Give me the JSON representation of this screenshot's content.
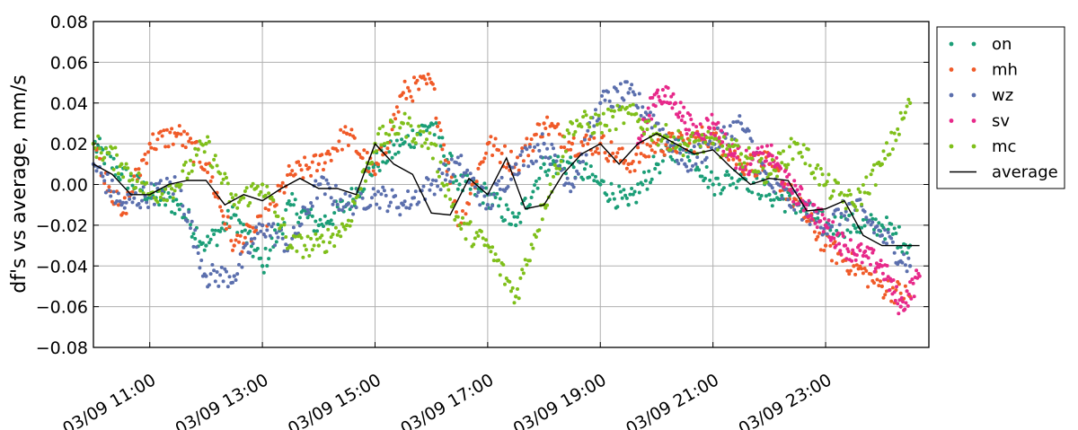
{
  "chart_data": {
    "type": "scatter",
    "title": "",
    "xlabel": "",
    "ylabel": "df's vs average, mm/s",
    "ylim": [
      -0.08,
      0.08
    ],
    "yticks": [
      -0.08,
      -0.06,
      -0.04,
      -0.02,
      0.0,
      0.02,
      0.04,
      0.06,
      0.08
    ],
    "ytick_labels": [
      "−0.08",
      "−0.06",
      "−0.04",
      "−0.02",
      "0.00",
      "0.02",
      "0.04",
      "0.06",
      "0.08"
    ],
    "xlim": [
      "03/09 10:00",
      "03/09 24:50"
    ],
    "xticks": [
      "03/09 11:00",
      "03/09 13:00",
      "03/09 15:00",
      "03/09 17:00",
      "03/09 19:00",
      "03/09 21:00",
      "03/09 23:00"
    ],
    "grid": true,
    "legend_position": "outside-right",
    "series": [
      {
        "name": "on",
        "style": "dots",
        "color": "#1b9e77",
        "x": [
          "03/09 10:00",
          "03/09 10:30",
          "03/09 11:00",
          "03/09 11:30",
          "03/09 12:00",
          "03/09 12:30",
          "03/09 13:00",
          "03/09 13:30",
          "03/09 14:00",
          "03/09 14:30",
          "03/09 15:00",
          "03/09 15:30",
          "03/09 16:00",
          "03/09 16:30",
          "03/09 17:00",
          "03/09 17:30",
          "03/09 18:00",
          "03/09 18:30",
          "03/09 19:00",
          "03/09 19:30",
          "03/09 20:00",
          "03/09 20:30",
          "03/09 21:00",
          "03/09 21:30",
          "03/09 22:00",
          "03/09 22:30",
          "03/09 23:00",
          "03/09 23:30",
          "03/09 24:00",
          "03/09 24:30"
        ],
        "y": [
          0.02,
          0.005,
          -0.005,
          -0.01,
          -0.03,
          -0.015,
          -0.04,
          -0.01,
          -0.02,
          -0.01,
          0.01,
          0.02,
          0.03,
          0.0,
          -0.005,
          -0.02,
          0.01,
          0.01,
          0.0,
          -0.01,
          0.01,
          0.02,
          0.0,
          0.005,
          -0.005,
          -0.01,
          -0.02,
          -0.02,
          -0.02,
          -0.03
        ]
      },
      {
        "name": "mh",
        "style": "dots",
        "color": "#f05a28",
        "x": [
          "03/09 10:00",
          "03/09 10:30",
          "03/09 11:00",
          "03/09 11:30",
          "03/09 12:00",
          "03/09 12:30",
          "03/09 13:00",
          "03/09 13:30",
          "03/09 14:00",
          "03/09 14:30",
          "03/09 15:00",
          "03/09 15:30",
          "03/09 16:00",
          "03/09 16:30",
          "03/09 17:00",
          "03/09 17:30",
          "03/09 18:00",
          "03/09 18:30",
          "03/09 19:00",
          "03/09 19:30",
          "03/09 20:00",
          "03/09 20:30",
          "03/09 21:00",
          "03/09 21:30",
          "03/09 22:00",
          "03/09 22:30",
          "03/09 23:00",
          "03/09 23:30",
          "03/09 24:00",
          "03/09 24:30"
        ],
        "y": [
          0.02,
          -0.015,
          0.02,
          0.025,
          0.01,
          -0.03,
          -0.02,
          0.005,
          0.01,
          0.025,
          0.005,
          0.045,
          0.05,
          -0.02,
          0.02,
          0.01,
          0.03,
          0.02,
          0.02,
          0.01,
          0.02,
          0.02,
          0.025,
          0.01,
          0.01,
          -0.01,
          -0.03,
          -0.04,
          -0.05,
          -0.055
        ]
      },
      {
        "name": "wz",
        "style": "dots",
        "color": "#5b6fad",
        "x": [
          "03/09 10:00",
          "03/09 10:30",
          "03/09 11:00",
          "03/09 11:30",
          "03/09 12:00",
          "03/09 12:30",
          "03/09 13:00",
          "03/09 13:30",
          "03/09 14:00",
          "03/09 14:30",
          "03/09 15:00",
          "03/09 15:30",
          "03/09 16:00",
          "03/09 16:30",
          "03/09 17:00",
          "03/09 17:30",
          "03/09 18:00",
          "03/09 18:30",
          "03/09 19:00",
          "03/09 19:30",
          "03/09 20:00",
          "03/09 20:30",
          "03/09 21:00",
          "03/09 21:30",
          "03/09 22:00",
          "03/09 22:30",
          "03/09 23:00",
          "03/09 23:30",
          "03/09 24:00",
          "03/09 24:30"
        ],
        "y": [
          0.01,
          -0.01,
          -0.005,
          0.0,
          -0.045,
          -0.045,
          -0.02,
          -0.03,
          0.0,
          -0.01,
          -0.005,
          -0.01,
          0.0,
          0.01,
          -0.01,
          0.01,
          0.02,
          0.0,
          0.04,
          0.045,
          0.03,
          0.01,
          0.02,
          0.03,
          0.0,
          -0.01,
          -0.02,
          -0.01,
          -0.025,
          -0.04
        ]
      },
      {
        "name": "sv",
        "style": "dots",
        "color": "#e7298a",
        "x": [
          "03/09 19:40",
          "03/09 20:00",
          "03/09 20:20",
          "03/09 20:40",
          "03/09 21:00",
          "03/09 21:20",
          "03/09 21:40",
          "03/09 22:00",
          "03/09 22:20",
          "03/09 22:40",
          "03/09 23:00",
          "03/09 23:20",
          "03/09 23:40",
          "03/09 24:00",
          "03/09 24:20",
          "03/09 24:40"
        ],
        "y": [
          0.02,
          0.045,
          0.04,
          0.025,
          0.03,
          0.015,
          0.01,
          0.015,
          0.0,
          -0.01,
          -0.02,
          -0.03,
          -0.035,
          -0.04,
          -0.06,
          -0.045
        ]
      },
      {
        "name": "mc",
        "style": "dots",
        "color": "#7fbf1a",
        "x": [
          "03/09 10:00",
          "03/09 10:30",
          "03/09 11:00",
          "03/09 11:30",
          "03/09 12:00",
          "03/09 12:30",
          "03/09 13:00",
          "03/09 13:30",
          "03/09 14:00",
          "03/09 14:30",
          "03/09 15:00",
          "03/09 15:30",
          "03/09 16:00",
          "03/09 16:30",
          "03/09 17:00",
          "03/09 17:30",
          "03/09 18:00",
          "03/09 18:30",
          "03/09 19:00",
          "03/09 19:30",
          "03/09 20:00",
          "03/09 20:30",
          "03/09 21:00",
          "03/09 21:30",
          "03/09 22:00",
          "03/09 22:30",
          "03/09 23:00",
          "03/09 23:30",
          "03/09 24:00",
          "03/09 24:30"
        ],
        "y": [
          0.02,
          0.01,
          -0.005,
          0.0,
          0.02,
          -0.01,
          0.0,
          -0.03,
          -0.03,
          -0.02,
          0.02,
          0.03,
          0.02,
          -0.02,
          -0.03,
          -0.055,
          -0.01,
          0.03,
          0.03,
          0.035,
          0.025,
          0.02,
          0.02,
          0.015,
          0.005,
          0.02,
          0.0,
          -0.01,
          0.01,
          0.04
        ]
      },
      {
        "name": "average",
        "style": "line",
        "color": "#000000",
        "x": [
          "03/09 10:00",
          "03/09 10:20",
          "03/09 10:40",
          "03/09 11:00",
          "03/09 11:20",
          "03/09 11:40",
          "03/09 12:00",
          "03/09 12:20",
          "03/09 12:40",
          "03/09 13:00",
          "03/09 13:20",
          "03/09 13:40",
          "03/09 14:00",
          "03/09 14:20",
          "03/09 14:40",
          "03/09 15:00",
          "03/09 15:20",
          "03/09 15:40",
          "03/09 16:00",
          "03/09 16:20",
          "03/09 16:40",
          "03/09 17:00",
          "03/09 17:20",
          "03/09 17:40",
          "03/09 18:00",
          "03/09 18:20",
          "03/09 18:40",
          "03/09 19:00",
          "03/09 19:20",
          "03/09 19:40",
          "03/09 20:00",
          "03/09 20:20",
          "03/09 20:40",
          "03/09 21:00",
          "03/09 21:20",
          "03/09 21:40",
          "03/09 22:00",
          "03/09 22:20",
          "03/09 22:40",
          "03/09 23:00",
          "03/09 23:20",
          "03/09 23:40",
          "03/09 24:00",
          "03/09 24:20",
          "03/09 24:40"
        ],
        "y": [
          0.01,
          0.005,
          -0.005,
          -0.005,
          0.0,
          0.002,
          0.002,
          -0.01,
          -0.005,
          -0.008,
          -0.002,
          0.003,
          -0.002,
          -0.002,
          -0.005,
          0.02,
          0.01,
          0.005,
          -0.014,
          -0.015,
          0.003,
          -0.005,
          0.013,
          -0.012,
          -0.01,
          0.005,
          0.015,
          0.02,
          0.01,
          0.02,
          0.025,
          0.02,
          0.015,
          0.017,
          0.008,
          0.0,
          0.003,
          0.002,
          -0.013,
          -0.012,
          -0.008,
          -0.025,
          -0.03,
          -0.03,
          -0.03
        ]
      }
    ]
  }
}
